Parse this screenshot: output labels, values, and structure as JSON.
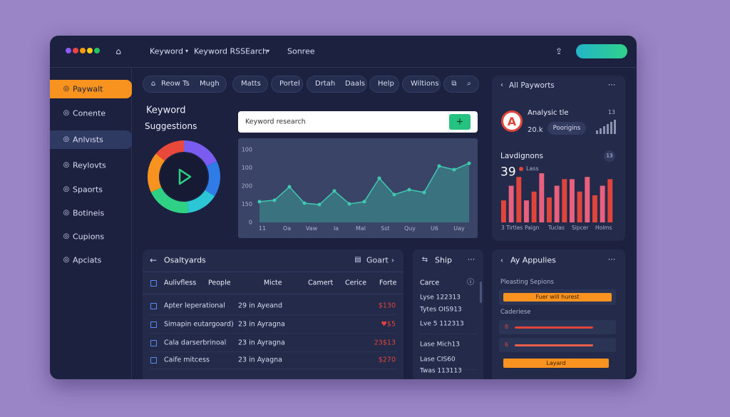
{
  "topbar": {
    "tabs": [
      "Keyword",
      "Keyword RSSEarch"
    ],
    "source": "Sonree"
  },
  "sidebar": {
    "items": [
      "Paywalt",
      "Conente",
      "Anlvısts",
      "Reylovts",
      "Spaorts",
      "Botineis",
      "Cupions",
      "Apciats"
    ],
    "active": 0,
    "highlighted": 2
  },
  "toolbar": {
    "chips": [
      [
        "Reow Ts",
        "Mugh"
      ],
      [
        "Matts"
      ],
      [
        "Portel"
      ],
      [
        "Drtah",
        "Daals"
      ],
      [
        "Help"
      ],
      [
        "Wiltions"
      ]
    ]
  },
  "suggestions": {
    "title": "Keyword",
    "subtitle": "Suggestions",
    "search_placeholder": "Keyword research",
    "donut": {
      "values": [
        18,
        16,
        14,
        20,
        18,
        14
      ],
      "colors": [
        "#7b5cf0",
        "#2f7be8",
        "#2cc7d6",
        "#2fd184",
        "#f7931e",
        "#e8493a"
      ]
    },
    "chart": {
      "type": "area",
      "y_labels": [
        "100",
        "100",
        "200",
        "150",
        "0"
      ],
      "x_labels": [
        "11",
        "Oa",
        "Vaw",
        "la",
        "Mal",
        "Sst",
        "Quy",
        "U6",
        "Uay"
      ],
      "ylim": [
        0,
        400
      ],
      "values": [
        114,
        122,
        196,
        106,
        98,
        173,
        102,
        114,
        243,
        153,
        180,
        165,
        310,
        290,
        325
      ],
      "color": "#3fc9b0"
    }
  },
  "payworts": {
    "title": "All Payworts",
    "analysis": {
      "title": "Analysic tle",
      "badge": "13",
      "count": "20.k",
      "tag": "Poorigins"
    },
    "lavdignons": {
      "title": "Lavdignons",
      "badge": "13",
      "value": "39",
      "legend": "Lass",
      "bars": {
        "type": "bar",
        "values": [
          30,
          50,
          62,
          30,
          42,
          67,
          34,
          50,
          59,
          59,
          42,
          62,
          37,
          50,
          59
        ],
        "ylim": [
          0,
          70
        ],
        "colors": [
          "#e0443a",
          "#e8607e"
        ],
        "x_labels": [
          "3 Tirtles",
          "Paign",
          "Tuclas",
          "Sipcer",
          "Holms"
        ]
      }
    }
  },
  "table": {
    "title": "Osaltyards",
    "action": "Goart",
    "columns": [
      "Aulivfless",
      "People",
      "Micte",
      "Camert",
      "Cerice",
      "Forte"
    ],
    "rows": [
      [
        "Apter leperational",
        "29 in Ayeand",
        "$130"
      ],
      [
        "Simapin eutargoard)",
        "23 in Ayragna",
        "♥$5"
      ],
      [
        "Cala darserbrinoal",
        "23 in Ayragna",
        "23$13"
      ],
      [
        "Caife mitcess",
        "23 in Ayagna",
        "$270"
      ]
    ]
  },
  "ship": {
    "title": "Ship",
    "header": "Carce",
    "rows": [
      "Lyse 122313",
      "Tytes OIS913",
      "Lve 5 112313",
      "Lase Mich13",
      "Lase CIS60",
      "Twas 113113"
    ]
  },
  "appulies": {
    "title": "Ay Appulies",
    "section": "Pleasting Sepions",
    "highlight": "Fuer will hurest",
    "subsection": "Caderiese",
    "items": [
      "8",
      "6"
    ],
    "button": "Layard"
  }
}
